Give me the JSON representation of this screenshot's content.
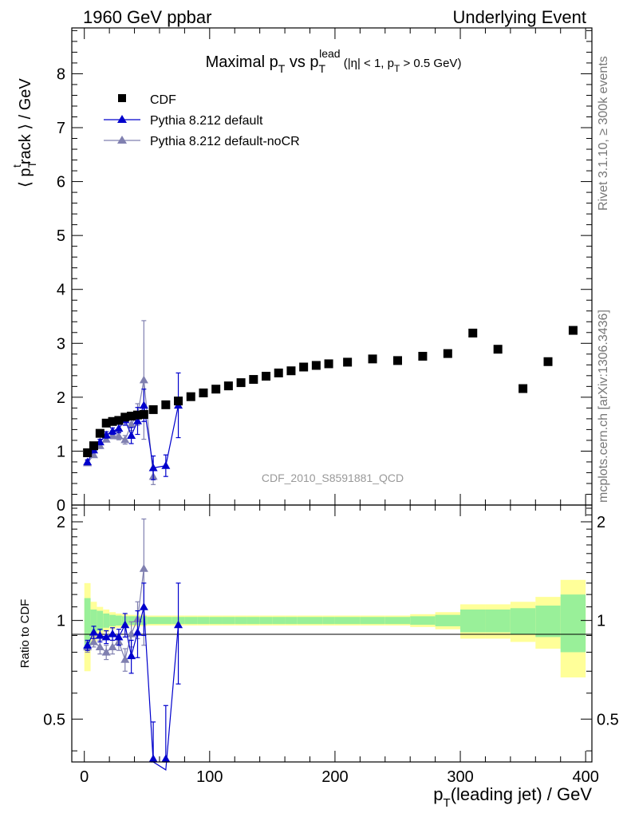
{
  "header": {
    "left": "1960 GeV ppbar",
    "right": "Underlying Event"
  },
  "side_labels": {
    "rivet": "Rivet 3.1.10, ≥ 300k events",
    "mcplots": "mcplots.cern.ch [arXiv:1306.3436]"
  },
  "chart_data": {
    "type": "scatter",
    "title": {
      "prefix": "Maximal p",
      "sub1": "T",
      "mid": " vs p",
      "sub2": "T",
      "sup2": "lead",
      "tail1": " (|η| < 1, p",
      "sub3": "T",
      "tail2": " > 0.5 GeV)"
    },
    "watermark": "CDF_2010_S8591881_QCD",
    "ylabel": {
      "a": "⟨ p",
      "sub": "T",
      "sup": "t",
      "b": "rack ⟩ / GeV"
    },
    "xlabel": {
      "a": "p",
      "sub": "T",
      "b": "(leading jet) / GeV"
    },
    "ratio_ylabel": "Ratio to CDF",
    "xlim": [
      -10,
      405
    ],
    "ylim": [
      0,
      8.85
    ],
    "ratio_ylim": [
      0.37,
      2.25
    ],
    "x_ticks": [
      "0",
      "100",
      "200",
      "300",
      "400"
    ],
    "y_ticks": [
      "0",
      "1",
      "2",
      "3",
      "4",
      "5",
      "6",
      "7",
      "8"
    ],
    "ratio_ticks": [
      "0.5",
      "1",
      "2"
    ],
    "legend": [
      "CDF",
      "Pythia 8.212 default",
      "Pythia 8.212 default-noCR"
    ],
    "colors": {
      "data": "#000000",
      "default": "#0000cc",
      "noCR": "#8080b0",
      "band_inner": "#99f099",
      "band_outer": "#ffff99"
    },
    "data_points": {
      "x": [
        2.5,
        7.5,
        12.5,
        17.5,
        22.5,
        27.5,
        32.5,
        37.5,
        42.5,
        47.5,
        55,
        65,
        75,
        85,
        95,
        105,
        115,
        125,
        135,
        145,
        155,
        165,
        175,
        185,
        195,
        210,
        230,
        250,
        270,
        290,
        310,
        330,
        350,
        370,
        390
      ],
      "y": [
        0.97,
        1.1,
        1.33,
        1.52,
        1.55,
        1.57,
        1.63,
        1.65,
        1.67,
        1.68,
        1.77,
        1.86,
        1.93,
        2.01,
        2.08,
        2.15,
        2.21,
        2.27,
        2.33,
        2.39,
        2.45,
        2.49,
        2.56,
        2.59,
        2.62,
        2.65,
        2.71,
        2.68,
        2.76,
        2.81,
        3.19,
        2.89,
        2.16,
        2.66,
        3.24
      ]
    },
    "series": [
      {
        "name": "Pythia 8.212 default",
        "x": [
          2.5,
          7.5,
          12.5,
          17.5,
          22.5,
          27.5,
          32.5,
          37.5,
          42.5,
          47.5,
          55,
          65,
          75
        ],
        "y": [
          0.8,
          1.02,
          1.17,
          1.3,
          1.37,
          1.42,
          1.58,
          1.29,
          1.56,
          1.85,
          0.69,
          0.73,
          1.85
        ],
        "err": [
          0.04,
          0.05,
          0.05,
          0.06,
          0.06,
          0.08,
          0.1,
          0.15,
          0.25,
          0.3,
          0.22,
          0.2,
          0.6
        ]
      },
      {
        "name": "Pythia 8.212 default-noCR",
        "x": [
          2.5,
          7.5,
          12.5,
          17.5,
          22.5,
          27.5,
          32.5,
          37.5,
          42.5,
          47.5,
          55
        ],
        "y": [
          0.78,
          0.93,
          1.1,
          1.22,
          1.29,
          1.28,
          1.21,
          1.5,
          1.68,
          2.32,
          0.53
        ],
        "err": [
          0.04,
          0.04,
          0.05,
          0.05,
          0.06,
          0.07,
          0.08,
          0.12,
          0.2,
          1.1,
          0.15
        ]
      }
    ],
    "ratio_series": [
      {
        "name": "Pythia 8.212 default",
        "x": [
          2.5,
          7.5,
          12.5,
          17.5,
          22.5,
          27.5,
          32.5,
          37.5,
          42.5,
          47.5,
          55,
          65,
          75
        ],
        "y": [
          0.84,
          0.92,
          0.9,
          0.89,
          0.91,
          0.89,
          0.97,
          0.78,
          0.92,
          1.1,
          0.37,
          0.35,
          0.97
        ],
        "err": [
          0.03,
          0.04,
          0.04,
          0.04,
          0.04,
          0.05,
          0.08,
          0.09,
          0.15,
          0.2,
          0.12,
          0.2,
          0.33
        ]
      },
      {
        "name": "Pythia 8.212 default-noCR",
        "x": [
          2.5,
          7.5,
          12.5,
          17.5,
          22.5,
          27.5,
          32.5,
          37.5,
          42.5,
          47.5
        ],
        "y": [
          0.83,
          0.86,
          0.83,
          0.8,
          0.83,
          0.86,
          0.76,
          0.91,
          1.01,
          1.44
        ],
        "err": [
          0.03,
          0.03,
          0.04,
          0.04,
          0.04,
          0.05,
          0.06,
          0.08,
          0.13,
          0.6
        ]
      }
    ],
    "bands": {
      "x_edges": [
        0,
        5,
        10,
        15,
        20,
        25,
        30,
        35,
        40,
        45,
        50,
        60,
        70,
        80,
        90,
        100,
        110,
        120,
        130,
        140,
        150,
        160,
        170,
        180,
        190,
        200,
        220,
        240,
        260,
        280,
        300,
        320,
        340,
        360,
        380,
        400
      ],
      "inner": [
        0.17,
        0.08,
        0.07,
        0.05,
        0.04,
        0.035,
        0.03,
        0.03,
        0.03,
        0.03,
        0.025,
        0.025,
        0.025,
        0.025,
        0.025,
        0.025,
        0.025,
        0.025,
        0.025,
        0.025,
        0.025,
        0.025,
        0.025,
        0.025,
        0.025,
        0.025,
        0.025,
        0.025,
        0.03,
        0.04,
        0.08,
        0.08,
        0.09,
        0.11,
        0.2
      ],
      "outer": [
        0.3,
        0.14,
        0.1,
        0.08,
        0.06,
        0.05,
        0.045,
        0.04,
        0.04,
        0.04,
        0.035,
        0.035,
        0.035,
        0.035,
        0.035,
        0.035,
        0.035,
        0.035,
        0.035,
        0.035,
        0.035,
        0.035,
        0.035,
        0.035,
        0.035,
        0.035,
        0.035,
        0.035,
        0.045,
        0.06,
        0.12,
        0.12,
        0.14,
        0.18,
        0.33
      ]
    }
  }
}
